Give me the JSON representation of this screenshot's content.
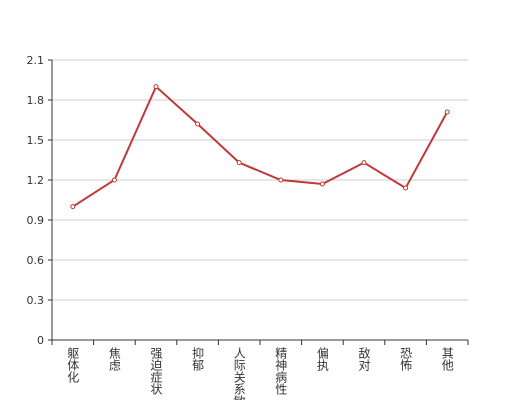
{
  "chart_data": {
    "type": "line",
    "categories": [
      "躯体化",
      "焦虑",
      "强迫症状",
      "抑郁",
      "人际关系敏感",
      "精神病性",
      "偏执",
      "敌对",
      "恐怖",
      "其他"
    ],
    "series": [
      {
        "color": "#c0383a",
        "values": [
          1.0,
          1.2,
          1.9,
          1.62,
          1.33,
          1.2,
          1.17,
          1.33,
          1.14,
          1.71
        ]
      }
    ],
    "ylim": [
      0,
      2.1
    ],
    "yticks": [
      0,
      0.3,
      0.6,
      0.9,
      1.2,
      1.5,
      1.8,
      2.1
    ],
    "grid": true
  }
}
